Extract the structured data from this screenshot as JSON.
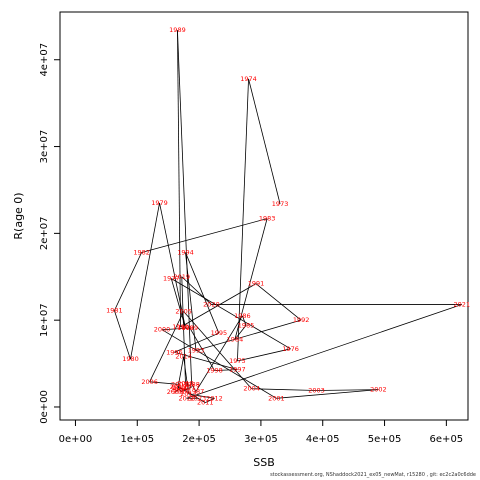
{
  "chart_data": {
    "type": "line",
    "xlabel": "SSB",
    "ylabel": "R(age 0)",
    "xlim": [
      -25000,
      635000
    ],
    "ylim": [
      -1500000,
      45500000
    ],
    "xticks": [
      0,
      100000,
      200000,
      300000,
      400000,
      500000,
      600000
    ],
    "xtick_labels": [
      "0e+00",
      "1e+05",
      "2e+05",
      "3e+05",
      "4e+05",
      "5e+05",
      "6e+05"
    ],
    "yticks": [
      0,
      10000000,
      20000000,
      30000000,
      40000000
    ],
    "ytick_labels": [
      "0e+00",
      "1e+07",
      "2e+07",
      "3e+07",
      "4e+07"
    ],
    "points": [
      {
        "year": "1973",
        "ssb": 331000,
        "r": 23400000
      },
      {
        "year": "1974",
        "ssb": 280000,
        "r": 37800000
      },
      {
        "year": "1975",
        "ssb": 262000,
        "r": 5300000
      },
      {
        "year": "1976",
        "ssb": 348000,
        "r": 6700000
      },
      {
        "year": "1977",
        "ssb": 155000,
        "r": 14800000
      },
      {
        "year": "1978",
        "ssb": 178000,
        "r": 9100000
      },
      {
        "year": "1979",
        "ssb": 136000,
        "r": 23500000
      },
      {
        "year": "1980",
        "ssb": 89000,
        "r": 5500000
      },
      {
        "year": "1981",
        "ssb": 63000,
        "r": 11100000
      },
      {
        "year": "1982",
        "ssb": 107000,
        "r": 17800000
      },
      {
        "year": "1983",
        "ssb": 310000,
        "r": 21700000
      },
      {
        "year": "1984",
        "ssb": 258000,
        "r": 7800000
      },
      {
        "year": "1985",
        "ssb": 276000,
        "r": 9400000
      },
      {
        "year": "1986",
        "ssb": 270000,
        "r": 10500000
      },
      {
        "year": "1987",
        "ssb": 195000,
        "r": 1800000
      },
      {
        "year": "1988",
        "ssb": 188000,
        "r": 2600000
      },
      {
        "year": "1989",
        "ssb": 165000,
        "r": 43400000
      },
      {
        "year": "1990",
        "ssb": 170000,
        "r": 9200000
      },
      {
        "year": "1991",
        "ssb": 292000,
        "r": 14200000
      },
      {
        "year": "1992",
        "ssb": 365000,
        "r": 10000000
      },
      {
        "year": "1993",
        "ssb": 195000,
        "r": 6500000
      },
      {
        "year": "1994",
        "ssb": 178000,
        "r": 17800000
      },
      {
        "year": "1995",
        "ssb": 232000,
        "r": 8500000
      },
      {
        "year": "1996",
        "ssb": 160000,
        "r": 6300000
      },
      {
        "year": "1997",
        "ssb": 262000,
        "r": 4300000
      },
      {
        "year": "1998",
        "ssb": 225000,
        "r": 4200000
      },
      {
        "year": "1999",
        "ssb": 185000,
        "r": 9100000
      },
      {
        "year": "2000",
        "ssb": 140000,
        "r": 8900000
      },
      {
        "year": "2001",
        "ssb": 325000,
        "r": 1000000
      },
      {
        "year": "2002",
        "ssb": 490000,
        "r": 2000000
      },
      {
        "year": "2003",
        "ssb": 390000,
        "r": 1900000
      },
      {
        "year": "2004",
        "ssb": 285000,
        "r": 2100000
      },
      {
        "year": "2005",
        "ssb": 175000,
        "r": 11000000
      },
      {
        "year": "2006",
        "ssb": 120000,
        "r": 2900000
      },
      {
        "year": "2007",
        "ssb": 168000,
        "r": 2600000
      },
      {
        "year": "2008",
        "ssb": 167000,
        "r": 2000000
      },
      {
        "year": "2009",
        "ssb": 161000,
        "r": 1700000
      },
      {
        "year": "2010",
        "ssb": 170000,
        "r": 2200000
      },
      {
        "year": "2011",
        "ssb": 210000,
        "r": 500000
      },
      {
        "year": "2012",
        "ssb": 225000,
        "r": 1000000
      },
      {
        "year": "2013",
        "ssb": 183000,
        "r": 1500000
      },
      {
        "year": "2014",
        "ssb": 175000,
        "r": 5800000
      },
      {
        "year": "2015",
        "ssb": 166000,
        "r": 2300000
      },
      {
        "year": "2016",
        "ssb": 171000,
        "r": 1800000
      },
      {
        "year": "2017",
        "ssb": 188000,
        "r": 2300000
      },
      {
        "year": "2018",
        "ssb": 178000,
        "r": 2700000
      },
      {
        "year": "2019",
        "ssb": 172000,
        "r": 15000000
      },
      {
        "year": "2020",
        "ssb": 220000,
        "r": 11800000
      },
      {
        "year": "2021",
        "ssb": 625000,
        "r": 11800000
      },
      {
        "year": "2022",
        "ssb": 180000,
        "r": 1000000
      },
      {
        "year": "2023",
        "ssb": 198000,
        "r": 1000000
      }
    ]
  },
  "caption": "stockassessment.org, NShaddock2021_ex05_newMat, r15280 , git: ec2c2a0c6dde"
}
